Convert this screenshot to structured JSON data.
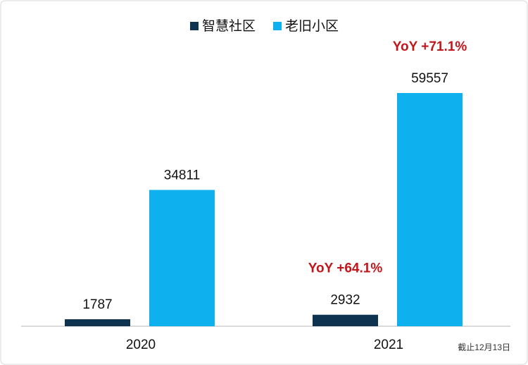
{
  "chart_data": {
    "type": "bar",
    "categories": [
      "2020",
      "2021"
    ],
    "series": [
      {
        "name": "智慧社区",
        "color": "#0e3350",
        "values": [
          1787,
          2932
        ]
      },
      {
        "name": "老旧小区",
        "color": "#0fb0ee",
        "values": [
          34811,
          59557
        ]
      }
    ],
    "annotations": [
      "YoY +71.1%",
      "YoY +64.1%"
    ],
    "note": "截止12月13日"
  }
}
